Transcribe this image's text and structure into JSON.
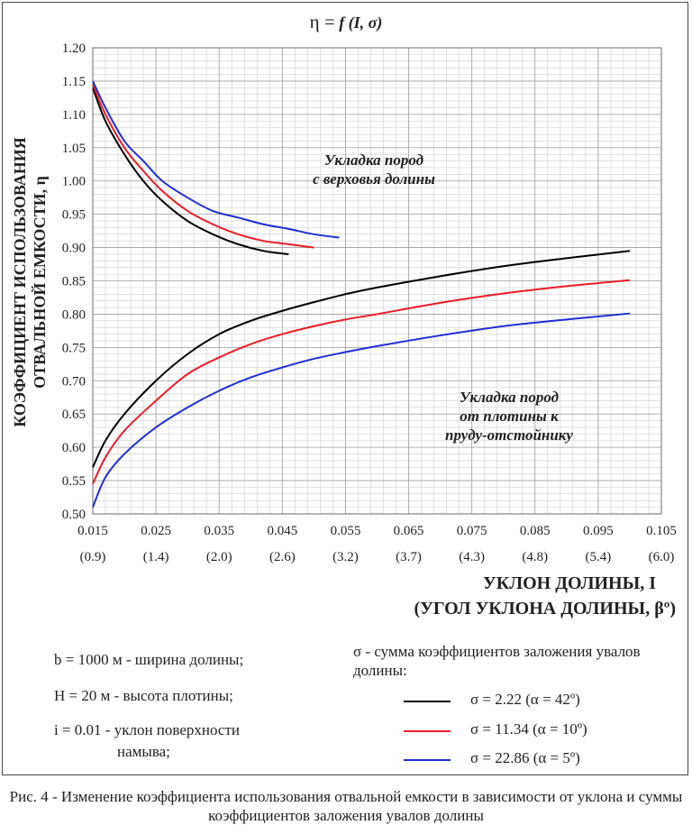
{
  "chart_data": {
    "type": "line",
    "title": "η = f (I, σ)",
    "ylabel": "КОЭФФИЦИЕНТ ИСПОЛЬЗОВАНИЯ ОТВАЛЬНОЙ ЕМКОСТИ, η",
    "xlabel": "УКЛОН ДОЛИНЫ, I",
    "xlabel2": "(УГОЛ УКЛОНА ДОЛИНЫ, βº)",
    "xlim": [
      0.015,
      0.105
    ],
    "ylim": [
      0.5,
      1.2
    ],
    "xticks": [
      "0.015",
      "0.025",
      "0.035",
      "0.045",
      "0.055",
      "0.065",
      "0.075",
      "0.085",
      "0.095",
      "0.105"
    ],
    "xticks2": [
      "(0.9)",
      "(1.4)",
      "(2.0)",
      "(2.6)",
      "(3.2)",
      "(3.7)",
      "(4.3)",
      "(4.8)",
      "(5.4)",
      "(6.0)"
    ],
    "yticks": [
      "0.50",
      "0.55",
      "0.60",
      "0.65",
      "0.70",
      "0.75",
      "0.80",
      "0.85",
      "0.90",
      "0.95",
      "1.00",
      "1.05",
      "1.10",
      "1.15",
      "1.20"
    ],
    "grid": true,
    "annotations": [
      {
        "text_lines": [
          "Укладка пород",
          "с верховья долины"
        ]
      },
      {
        "text_lines": [
          "Укладка пород",
          "от плотины к",
          "пруду-отстойнику"
        ]
      }
    ],
    "series": [
      {
        "name": "σ = 2.22 (α = 42º)",
        "color": "#000000",
        "upstream": {
          "x": [
            0.015,
            0.017,
            0.02,
            0.023,
            0.026,
            0.03,
            0.034,
            0.038,
            0.042,
            0.046
          ],
          "y": [
            1.14,
            1.09,
            1.04,
            1.0,
            0.97,
            0.94,
            0.92,
            0.905,
            0.895,
            0.89
          ]
        },
        "downstream": {
          "x": [
            0.015,
            0.017,
            0.02,
            0.025,
            0.03,
            0.035,
            0.04,
            0.045,
            0.05,
            0.055,
            0.06,
            0.07,
            0.08,
            0.09,
            0.1
          ],
          "y": [
            0.57,
            0.61,
            0.65,
            0.7,
            0.74,
            0.77,
            0.79,
            0.805,
            0.818,
            0.83,
            0.84,
            0.857,
            0.872,
            0.884,
            0.895
          ]
        }
      },
      {
        "name": "σ = 11.34 (α = 10º)",
        "color": "#ed1c24",
        "upstream": {
          "x": [
            0.015,
            0.017,
            0.02,
            0.023,
            0.026,
            0.03,
            0.034,
            0.038,
            0.042,
            0.046,
            0.05
          ],
          "y": [
            1.145,
            1.1,
            1.05,
            1.015,
            0.985,
            0.955,
            0.935,
            0.92,
            0.91,
            0.905,
            0.9
          ]
        },
        "downstream": {
          "x": [
            0.015,
            0.017,
            0.02,
            0.025,
            0.03,
            0.035,
            0.04,
            0.045,
            0.05,
            0.055,
            0.06,
            0.07,
            0.08,
            0.09,
            0.1
          ],
          "y": [
            0.545,
            0.585,
            0.625,
            0.67,
            0.71,
            0.735,
            0.755,
            0.77,
            0.782,
            0.792,
            0.8,
            0.817,
            0.831,
            0.842,
            0.851
          ]
        }
      },
      {
        "name": "σ = 22.86 (α = 5º)",
        "color": "#2e3192",
        "upstream": {
          "x": [
            0.015,
            0.017,
            0.02,
            0.023,
            0.026,
            0.03,
            0.034,
            0.038,
            0.042,
            0.046,
            0.05,
            0.054
          ],
          "y": [
            1.15,
            1.11,
            1.06,
            1.03,
            1.0,
            0.975,
            0.955,
            0.945,
            0.935,
            0.928,
            0.92,
            0.915
          ]
        },
        "downstream": {
          "x": [
            0.015,
            0.017,
            0.02,
            0.025,
            0.03,
            0.035,
            0.04,
            0.045,
            0.05,
            0.055,
            0.06,
            0.07,
            0.08,
            0.09,
            0.1
          ],
          "y": [
            0.51,
            0.555,
            0.59,
            0.63,
            0.66,
            0.685,
            0.705,
            0.72,
            0.733,
            0.743,
            0.752,
            0.768,
            0.782,
            0.792,
            0.801
          ]
        }
      }
    ]
  },
  "params": [
    {
      "text": "b = 1000 м - ширина долины;"
    },
    {
      "text": "H = 20 м - высота плотины;"
    },
    {
      "text": "i = 0.01 - уклон поверхности"
    },
    {
      "text": "намыва;"
    }
  ],
  "sigma_caption": "σ -  сумма коэффициентов заложения увалов долины:",
  "legend": [
    {
      "label": "σ = 2.22    (α = 42º)",
      "color": "#000000"
    },
    {
      "label": "σ = 11.34  (α = 10º)",
      "color": "#ed1c24"
    },
    {
      "label": "σ = 22.86  (α = 5º)",
      "color": "#1f2fd6"
    }
  ],
  "figure_caption": "Рис. 4 - Изменение коэффициента использования отвальной емкости в зависимости от уклона и суммы коэффициентов заложения увалов долины"
}
